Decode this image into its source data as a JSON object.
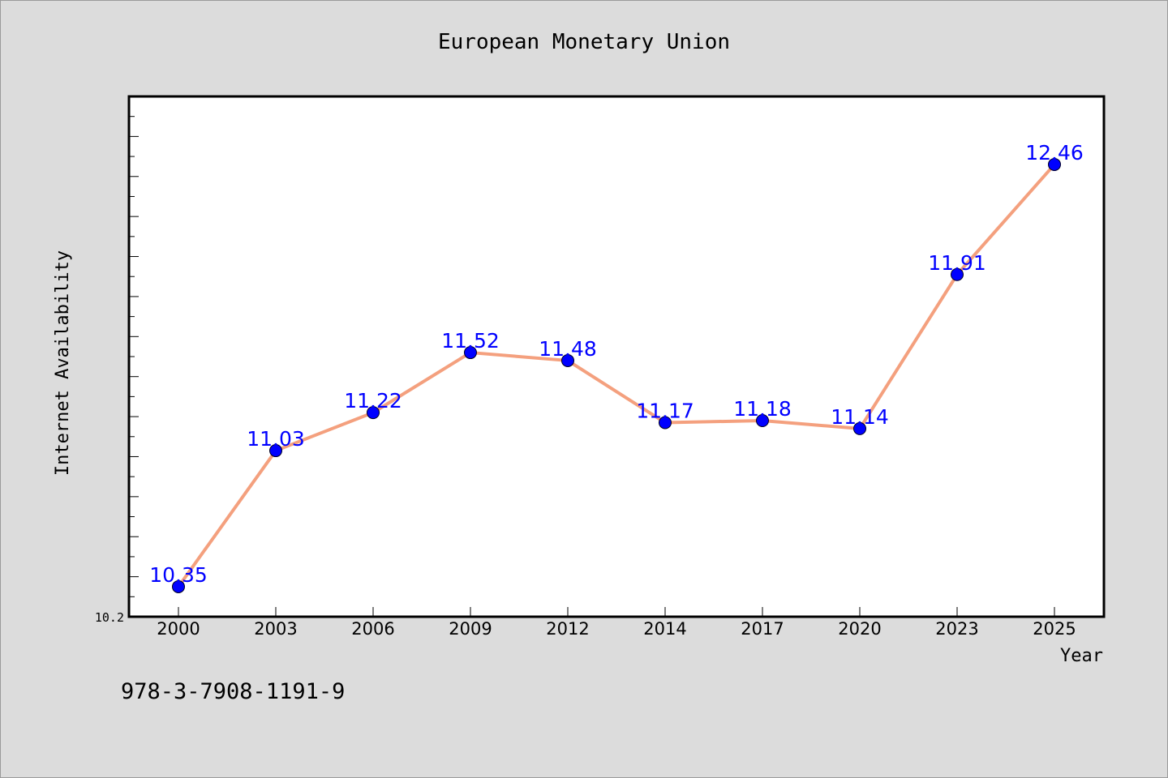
{
  "chart_data": {
    "type": "line",
    "title": "European Monetary Union",
    "xlabel": "Year",
    "ylabel": "Internet Availability",
    "categories": [
      "2000",
      "2003",
      "2006",
      "2009",
      "2012",
      "2014",
      "2017",
      "2020",
      "2023",
      "2025"
    ],
    "series": [
      {
        "values": [
          10.35,
          11.03,
          11.22,
          11.52,
          11.48,
          11.17,
          11.18,
          11.14,
          11.91,
          12.46
        ],
        "labels": [
          "10.35",
          "11.03",
          "11.22",
          "11.52",
          "11.48",
          "11.17",
          "11.18",
          "11.14",
          "11.91",
          "12.46"
        ]
      }
    ],
    "ylim": [
      10.2,
      12.8
    ],
    "ytick_labels": [
      "10.2"
    ],
    "line_color": "#f4a07e",
    "marker_color": "#0000ff",
    "grid": false,
    "legend": "none"
  },
  "footer": {
    "text": "978-3-7908-1191-9"
  }
}
